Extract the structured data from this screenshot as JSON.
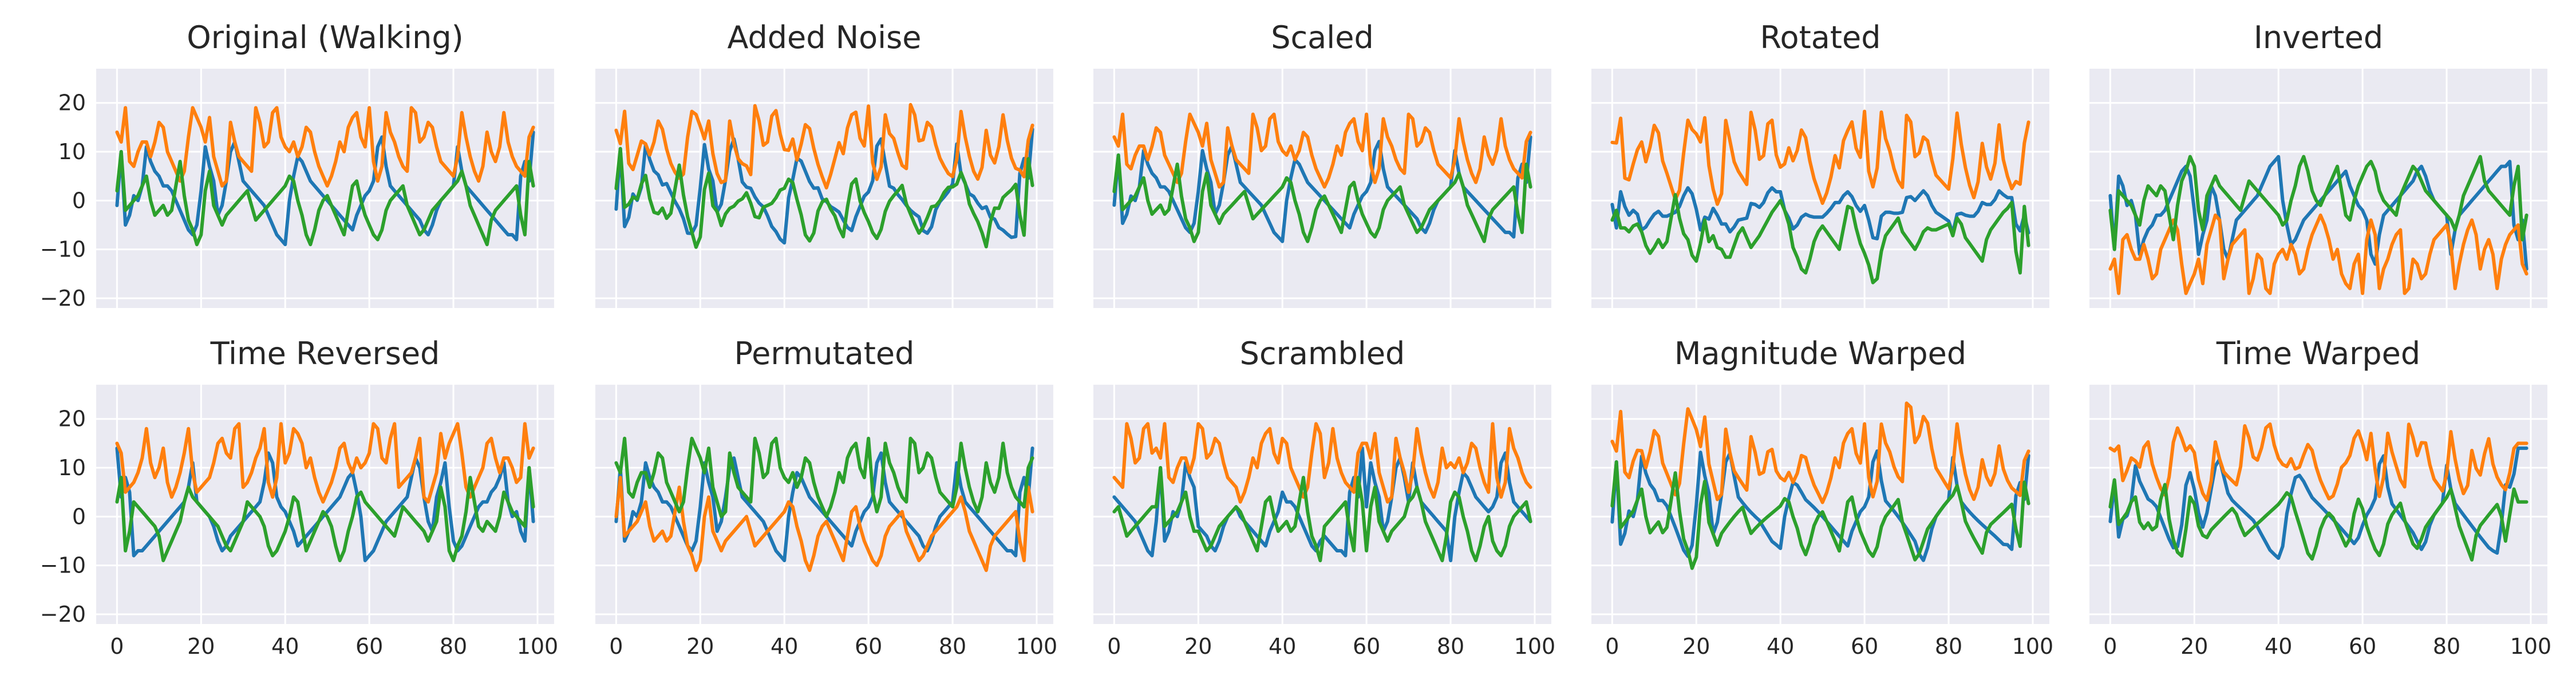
{
  "chart_data": {
    "type": "line",
    "layout_grid": {
      "rows": 2,
      "cols": 5
    },
    "shared_y": true,
    "shared_x": true,
    "xlim": [
      -4.95,
      103.95
    ],
    "ylim": [
      -22,
      27
    ],
    "xticks": [
      0,
      20,
      40,
      60,
      80,
      100
    ],
    "yticks": [
      -20,
      -10,
      0,
      10,
      20
    ],
    "grid": true,
    "series_colors": [
      "#1f77b4",
      "#ff7f0e",
      "#2ca02c"
    ],
    "panels": [
      {
        "title": "Original (Walking)",
        "transform": "original"
      },
      {
        "title": "Added Noise",
        "transform": "noise"
      },
      {
        "title": "Scaled",
        "transform": "scaled"
      },
      {
        "title": "Rotated",
        "transform": "rotated"
      },
      {
        "title": "Inverted",
        "transform": "inverted"
      },
      {
        "title": "Time Reversed",
        "transform": "reversed"
      },
      {
        "title": "Permutated",
        "transform": "permuted"
      },
      {
        "title": "Scrambled",
        "transform": "scrambled"
      },
      {
        "title": "Magnitude Warped",
        "transform": "magwarp"
      },
      {
        "title": "Time Warped",
        "transform": "timewarp"
      }
    ],
    "base_series": [
      {
        "color": "#1f77b4",
        "values": [
          -1,
          10,
          -5,
          -3,
          1,
          0,
          3,
          11,
          8,
          6,
          5,
          3,
          3,
          2,
          0,
          -2,
          -4,
          -6,
          -7,
          -5,
          2,
          11,
          7,
          4,
          -3,
          -1,
          4,
          10,
          12,
          8,
          4,
          3,
          2,
          1,
          0,
          -1,
          -3,
          -5,
          -7,
          -8,
          -9,
          0,
          5,
          9,
          8,
          6,
          4,
          3,
          2,
          1,
          0,
          -1,
          -2,
          -3,
          -4,
          -5,
          -6,
          -3,
          -1,
          1,
          2,
          4,
          11,
          13,
          7,
          3,
          2,
          1,
          0,
          -1,
          -2,
          -3,
          -4,
          -6,
          -7,
          -5,
          -2,
          0,
          1,
          2,
          3,
          11,
          6,
          3,
          2,
          1,
          0,
          -1,
          -2,
          -3,
          -4,
          -5,
          -6,
          -7,
          -7,
          -8,
          5,
          8,
          4,
          14
        ]
      },
      {
        "color": "#ff7f0e",
        "values": [
          14,
          12,
          19,
          8,
          7,
          10,
          12,
          12,
          9,
          12,
          16,
          15,
          10,
          8,
          6,
          4,
          6,
          13,
          19,
          17,
          15,
          12,
          17,
          9,
          6,
          3,
          4,
          16,
          12,
          9,
          8,
          7,
          6,
          19,
          16,
          11,
          12,
          18,
          19,
          13,
          11,
          10,
          12,
          9,
          11,
          15,
          14,
          10,
          7,
          5,
          3,
          5,
          8,
          12,
          10,
          15,
          17,
          18,
          13,
          11,
          19,
          8,
          4,
          7,
          18,
          14,
          12,
          9,
          7,
          6,
          19,
          18,
          12,
          13,
          16,
          15,
          11,
          8,
          7,
          6,
          5,
          9,
          18,
          13,
          9,
          6,
          4,
          7,
          14,
          10,
          8,
          11,
          18,
          12,
          9,
          7,
          6,
          5,
          13,
          15
        ]
      },
      {
        "color": "#2ca02c",
        "values": [
          2,
          10,
          -2,
          -1,
          0,
          1,
          3,
          5,
          0,
          -3,
          -2,
          -1,
          -3,
          -2,
          3,
          8,
          1,
          -4,
          -6,
          -9,
          -7,
          2,
          6,
          -1,
          -3,
          -5,
          -3,
          -2,
          -1,
          0,
          1,
          2,
          -1,
          -4,
          -3,
          -2,
          -1,
          0,
          1,
          2,
          3,
          5,
          4,
          0,
          -3,
          -7,
          -9,
          -6,
          -2,
          0,
          1,
          -1,
          -3,
          -5,
          -7,
          -2,
          3,
          4,
          0,
          -3,
          -5,
          -7,
          -8,
          -6,
          -2,
          0,
          1,
          2,
          3,
          -1,
          -3,
          -5,
          -7,
          -6,
          -4,
          -2,
          -1,
          0,
          1,
          2,
          3,
          4,
          6,
          3,
          -1,
          -3,
          -5,
          -7,
          -9,
          -4,
          -2,
          -1,
          0,
          1,
          2,
          3,
          -3,
          -7,
          8,
          3
        ]
      }
    ]
  },
  "figure": {
    "background": "#ffffff",
    "panel_background": "#eaeaf2"
  }
}
